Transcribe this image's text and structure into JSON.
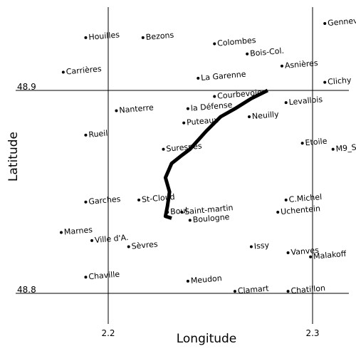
{
  "chart_data": {
    "type": "scatter",
    "xlabel": "Longitude",
    "ylabel": "Latitude",
    "xticks": [
      {
        "value": 2.2,
        "label": "2.2"
      },
      {
        "value": 2.3,
        "label": "2.3"
      }
    ],
    "yticks": [
      {
        "value": 48.9,
        "label": "48.9"
      },
      {
        "value": 48.8,
        "label": "48.8"
      }
    ],
    "places": [
      {
        "name": "Houilles",
        "lon": 2.189,
        "lat": 48.926
      },
      {
        "name": "Bezons",
        "lon": 2.217,
        "lat": 48.926
      },
      {
        "name": "Colombes",
        "lon": 2.252,
        "lat": 48.923
      },
      {
        "name": "Gennevilliers",
        "lon": 2.306,
        "lat": 48.933
      },
      {
        "name": "Bois-Col.",
        "lon": 2.268,
        "lat": 48.918
      },
      {
        "name": "Asnières",
        "lon": 2.285,
        "lat": 48.912
      },
      {
        "name": "Carrières",
        "lon": 2.178,
        "lat": 48.909
      },
      {
        "name": "La Garenne",
        "lon": 2.244,
        "lat": 48.906
      },
      {
        "name": "Clichy",
        "lon": 2.306,
        "lat": 48.904
      },
      {
        "name": "Courbevoie",
        "lon": 2.252,
        "lat": 48.897
      },
      {
        "name": "Levallois",
        "lon": 2.287,
        "lat": 48.894
      },
      {
        "name": "la Défense",
        "lon": 2.239,
        "lat": 48.891
      },
      {
        "name": "Nanterre",
        "lon": 2.204,
        "lat": 48.89
      },
      {
        "name": "Neuilly",
        "lon": 2.269,
        "lat": 48.887
      },
      {
        "name": "Puteaux",
        "lon": 2.237,
        "lat": 48.884
      },
      {
        "name": "Rueil",
        "lon": 2.189,
        "lat": 48.878
      },
      {
        "name": "Etoile",
        "lon": 2.295,
        "lat": 48.874
      },
      {
        "name": "M9_S",
        "lon": 2.31,
        "lat": 48.871
      },
      {
        "name": "Suresnes",
        "lon": 2.227,
        "lat": 48.871
      },
      {
        "name": "St-Cloud",
        "lon": 2.215,
        "lat": 48.846
      },
      {
        "name": "C.Michel",
        "lon": 2.287,
        "lat": 48.846
      },
      {
        "name": "Garches",
        "lon": 2.189,
        "lat": 48.845
      },
      {
        "name": "Uchentein",
        "lon": 2.283,
        "lat": 48.84
      },
      {
        "name": "Boul.",
        "lon": 2.229,
        "lat": 48.84
      },
      {
        "name": "Saint-martin",
        "lon": 2.236,
        "lat": 48.84
      },
      {
        "name": "Boulogne",
        "lon": 2.24,
        "lat": 48.836
      },
      {
        "name": "Marnes",
        "lon": 2.177,
        "lat": 48.83
      },
      {
        "name": "Ville d'A.",
        "lon": 2.192,
        "lat": 48.826
      },
      {
        "name": "Sèvres",
        "lon": 2.21,
        "lat": 48.823
      },
      {
        "name": "Issy",
        "lon": 2.27,
        "lat": 48.823
      },
      {
        "name": "Vanves",
        "lon": 2.288,
        "lat": 48.82
      },
      {
        "name": "Malakoff",
        "lon": 2.299,
        "lat": 48.818
      },
      {
        "name": "Chaville",
        "lon": 2.189,
        "lat": 48.808
      },
      {
        "name": "Meudon",
        "lon": 2.239,
        "lat": 48.806
      },
      {
        "name": "Clamart",
        "lon": 2.262,
        "lat": 48.801
      },
      {
        "name": "Chatillon",
        "lon": 2.288,
        "lat": 48.801
      }
    ],
    "route": {
      "lon": [
        2.278,
        2.27,
        2.262,
        2.255,
        2.248,
        2.24,
        2.236,
        2.231,
        2.228,
        2.23,
        2.229,
        2.228,
        2.231
      ],
      "lat": [
        48.9,
        48.896,
        48.891,
        48.887,
        48.88,
        48.871,
        48.868,
        48.864,
        48.857,
        48.85,
        48.843,
        48.838,
        48.837
      ]
    },
    "color": "#000000"
  }
}
